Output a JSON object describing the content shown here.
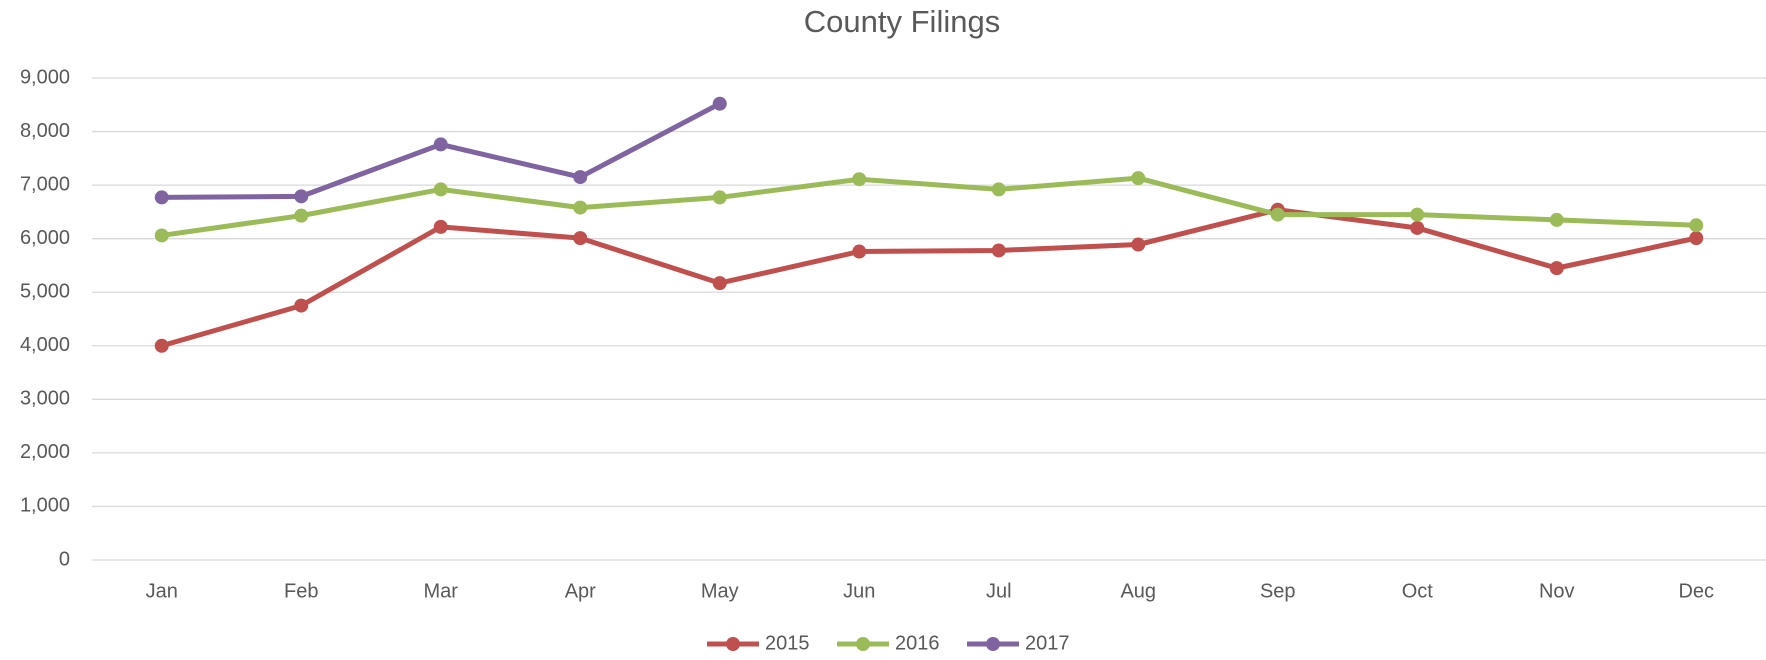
{
  "chart_data": {
    "type": "line",
    "title": "County Filings",
    "categories": [
      "Jan",
      "Feb",
      "Mar",
      "Apr",
      "May",
      "Jun",
      "Jul",
      "Aug",
      "Sep",
      "Oct",
      "Nov",
      "Dec"
    ],
    "series": [
      {
        "name": "2015",
        "color": "#c0504d",
        "values": [
          4000,
          4750,
          6220,
          6010,
          5170,
          5760,
          5780,
          5890,
          6540,
          6200,
          5450,
          6010
        ]
      },
      {
        "name": "2016",
        "color": "#9bbb59",
        "values": [
          6060,
          6430,
          6920,
          6580,
          6770,
          7110,
          6920,
          7130,
          6450,
          6450,
          6350,
          6250
        ]
      },
      {
        "name": "2017",
        "color": "#8064a2",
        "values": [
          6770,
          6790,
          7760,
          7150,
          8520,
          null,
          null,
          null,
          null,
          null,
          null,
          null
        ]
      }
    ],
    "ylim": [
      0,
      9000
    ],
    "yticks": [
      0,
      {
        "value": 1000,
        "label": "1,000"
      },
      {
        "value": 2000,
        "label": "2,000"
      },
      {
        "value": 3000,
        "label": "3,000"
      },
      {
        "value": 4000,
        "label": "4,000"
      },
      {
        "value": 5000,
        "label": "5,000"
      },
      {
        "value": 6000,
        "label": "6,000"
      },
      {
        "value": 7000,
        "label": "7,000"
      },
      {
        "value": 8000,
        "label": "8,000"
      },
      {
        "value": 9000,
        "label": "9,000"
      }
    ],
    "grid": true,
    "legend": "bottom"
  }
}
